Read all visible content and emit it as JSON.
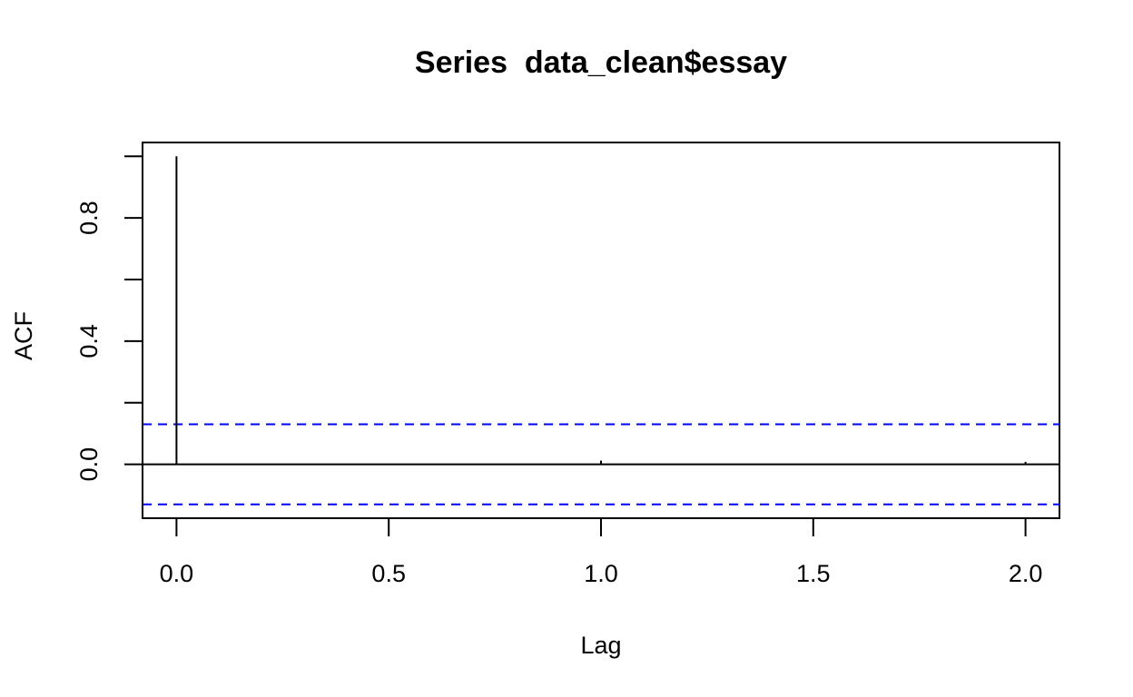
{
  "chart_data": {
    "type": "bar",
    "title": "Series  data_clean$essay",
    "xlabel": "Lag",
    "ylabel": "ACF",
    "xlim": [
      -0.08,
      2.08
    ],
    "ylim": [
      -0.175,
      1.045
    ],
    "x_ticks": [
      0.0,
      0.5,
      1.0,
      1.5,
      2.0
    ],
    "x_tick_labels": [
      "0.0",
      "0.5",
      "1.0",
      "1.5",
      "2.0"
    ],
    "y_ticks": [
      0.0,
      0.2,
      0.4,
      0.6,
      0.8,
      1.0
    ],
    "y_tick_labels": [
      "0.0",
      "",
      "0.4",
      "",
      "0.8",
      ""
    ],
    "lags": [
      0.0,
      1.0,
      2.0
    ],
    "acf": [
      1.0,
      0.012,
      0.008
    ],
    "confidence_bound": 0.13,
    "grid": false,
    "colors": {
      "spike": "#000000",
      "confidence": "#0000ff",
      "zero_line": "#000000",
      "frame": "#000000"
    }
  }
}
